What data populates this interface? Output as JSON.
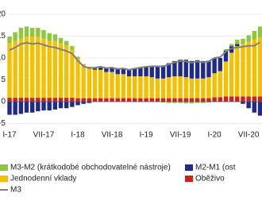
{
  "chart_data": {
    "type": "bar",
    "stacked": true,
    "categories": [
      "I-17",
      null,
      null,
      null,
      null,
      null,
      "VII-17",
      null,
      null,
      null,
      null,
      null,
      "I-18",
      null,
      null,
      null,
      null,
      null,
      "VII-18",
      null,
      null,
      null,
      null,
      null,
      "I-19",
      null,
      null,
      null,
      null,
      null,
      "VII-19",
      null,
      null,
      null,
      null,
      null,
      "I-20",
      null,
      null,
      null,
      null,
      null,
      "VII-20",
      null,
      null
    ],
    "series": [
      {
        "name": "M3-M2 (krátkodobé obchodovatelné nástroje)",
        "color": "#8dc63f",
        "values": [
          1.5,
          2,
          2.5,
          2.3,
          2,
          2,
          2,
          1.8,
          1.5,
          1.2,
          1,
          0.8,
          0.5,
          0.3,
          0.2,
          0.2,
          0.2,
          0.1,
          0,
          0,
          0,
          0,
          0,
          0,
          0,
          0,
          0,
          -0.2,
          -0.3,
          -0.3,
          -0.3,
          -0.4,
          -0.4,
          -0.3,
          -0.3,
          -0.2,
          0,
          0,
          0.3,
          0.5,
          1,
          1.2,
          1.5,
          2,
          2.5
        ]
      },
      {
        "name": "M2-M1 (ost",
        "color": "#1f2a8c",
        "values": [
          -3,
          -3,
          -2.8,
          -2.5,
          -2.5,
          -2.2,
          -2,
          -2,
          -1.8,
          -1.5,
          -1.5,
          -1.2,
          -0.8,
          -0.5,
          -0.3,
          0.3,
          0.5,
          0.8,
          1,
          1.2,
          1.3,
          1.5,
          1.8,
          2,
          2.2,
          2.5,
          2.8,
          3,
          3.2,
          3.5,
          3.8,
          4,
          4,
          4.2,
          4,
          3.8,
          3.5,
          3,
          2.5,
          1.5,
          0.5,
          -0.5,
          -1.5,
          -2.5,
          -3.2
        ]
      },
      {
        "name": "Jednodenní vklady",
        "color": "#f5c000",
        "values": [
          12.5,
          13,
          13.5,
          14,
          14,
          14,
          13.5,
          13,
          13,
          12.5,
          12,
          11,
          9,
          7.5,
          7,
          6.5,
          6.5,
          6,
          6,
          5.5,
          5.5,
          5,
          5,
          5,
          5,
          4.8,
          4.5,
          4.5,
          4.8,
          5,
          5,
          4.8,
          4.5,
          4.5,
          4.5,
          4.8,
          5.5,
          6,
          8,
          10,
          11.5,
          12,
          12.5,
          13,
          13.5
        ]
      },
      {
        "name": "Oběživo",
        "color": "#d0201a",
        "values": [
          0.9,
          0.9,
          0.9,
          0.9,
          0.9,
          0.9,
          0.9,
          0.9,
          0.9,
          0.9,
          0.9,
          0.9,
          0.8,
          0.8,
          0.8,
          0.8,
          0.8,
          0.8,
          0.8,
          0.8,
          0.8,
          0.8,
          0.8,
          0.8,
          0.8,
          0.8,
          0.8,
          0.8,
          0.8,
          0.8,
          0.8,
          0.8,
          0.8,
          0.8,
          0.8,
          0.8,
          1,
          1,
          1.2,
          1.2,
          1.2,
          1.2,
          1.2,
          1.2,
          1.2
        ]
      },
      {
        "name": "M3",
        "color": "#7f7f7f",
        "type": "line",
        "values": [
          11.8,
          12.4,
          13.2,
          13.5,
          13.2,
          13.4,
          13,
          12.6,
          12.4,
          12,
          11.6,
          11,
          9.4,
          8.1,
          7.7,
          7.8,
          8,
          7.7,
          7.8,
          7.5,
          7.6,
          7.3,
          7.6,
          7.8,
          8,
          8.1,
          8.1,
          8.1,
          8.5,
          9,
          9.3,
          9.2,
          8.9,
          9.2,
          9,
          9.2,
          10,
          10.2,
          11.5,
          12.2,
          12.4,
          12.6,
          12.8,
          12.8,
          13.6
        ]
      }
    ],
    "ylim": [
      -6,
      22
    ],
    "yticks": [
      -5,
      0,
      5,
      10,
      15,
      20
    ],
    "grid": true
  }
}
